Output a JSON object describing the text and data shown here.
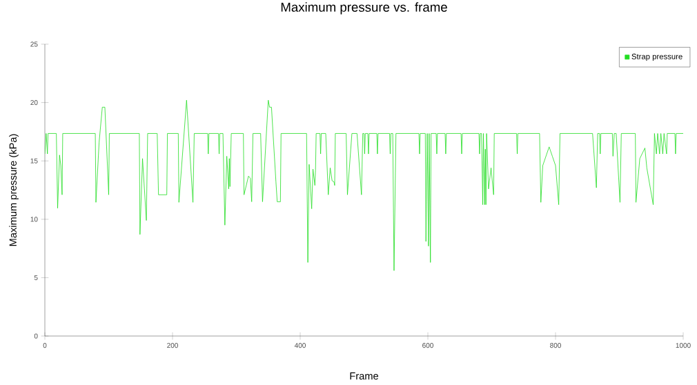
{
  "chart_data": {
    "type": "line",
    "title": "Maximum pressure vs. frame",
    "xlabel": "Frame",
    "ylabel": "Maximum pressure (kPa)",
    "xlim": [
      0,
      1000
    ],
    "ylim": [
      0,
      25
    ],
    "xticks": [
      0,
      200,
      400,
      600,
      800,
      1000
    ],
    "yticks": [
      0,
      5,
      10,
      15,
      20,
      25
    ],
    "legend": "top right",
    "x": [
      0,
      2,
      4,
      5,
      18,
      20,
      23,
      25,
      27,
      28,
      79,
      80,
      85,
      90,
      94,
      100,
      101,
      148,
      149,
      153,
      159,
      161,
      176,
      178,
      191,
      192,
      209,
      210,
      222,
      232,
      234,
      255,
      256,
      257,
      272,
      273,
      274,
      279,
      282,
      285,
      288,
      289,
      290,
      292,
      311,
      312,
      319,
      322,
      324,
      326,
      338,
      341,
      350,
      352,
      355,
      362,
      364,
      369,
      370,
      410,
      412,
      414,
      418,
      420,
      423,
      424,
      425,
      431,
      432,
      433,
      440,
      444,
      447,
      450,
      453,
      454,
      455,
      472,
      474,
      481,
      489,
      496,
      498,
      500,
      501,
      502,
      506,
      507,
      508,
      520,
      521,
      522,
      540,
      541,
      542,
      545,
      547,
      550,
      586,
      587,
      588,
      596,
      597,
      599,
      601,
      602,
      604,
      605,
      613,
      614,
      615,
      627,
      628,
      629,
      652,
      653,
      654,
      680,
      681,
      682,
      684,
      686,
      687,
      689,
      690,
      691,
      692,
      695,
      699,
      703,
      704,
      739,
      740,
      741,
      775,
      777,
      780,
      790,
      795,
      800,
      805,
      807,
      858,
      864,
      866,
      869,
      870,
      871,
      889,
      890,
      892,
      895,
      901,
      903,
      925,
      926,
      932,
      940,
      943,
      953,
      955,
      958,
      960,
      963,
      965,
      968,
      970,
      974,
      975,
      987,
      988,
      989,
      1000
    ],
    "series": [
      {
        "name": "Strap pressure",
        "color": "#22dd22",
        "values": [
          15.6,
          17.35,
          15.6,
          17.35,
          17.35,
          10.95,
          15.5,
          14.6,
          12.1,
          17.35,
          17.35,
          11.45,
          16.6,
          19.6,
          19.6,
          12.1,
          17.35,
          17.35,
          8.7,
          15.2,
          9.9,
          17.35,
          17.35,
          12.1,
          12.1,
          17.35,
          17.35,
          11.45,
          20.2,
          11.45,
          17.35,
          17.35,
          15.6,
          17.35,
          17.35,
          15.6,
          17.35,
          17.35,
          9.5,
          15.4,
          12.6,
          15.2,
          12.8,
          17.35,
          17.35,
          12.1,
          13.7,
          13.5,
          11.5,
          17.35,
          17.35,
          11.5,
          20.2,
          19.6,
          19.6,
          13.2,
          11.5,
          11.5,
          17.35,
          17.35,
          6.3,
          14.7,
          10.9,
          14.3,
          12.9,
          14.2,
          17.35,
          17.35,
          15.6,
          17.35,
          17.35,
          12.1,
          14.4,
          13.3,
          13.2,
          12.9,
          17.35,
          17.35,
          12.1,
          17.35,
          17.35,
          12.1,
          17.35,
          17.35,
          15.6,
          17.35,
          17.35,
          15.6,
          17.35,
          17.35,
          15.6,
          17.35,
          17.35,
          15.6,
          17.35,
          17.35,
          5.6,
          17.35,
          17.35,
          15.6,
          17.35,
          17.35,
          8.1,
          17.35,
          7.7,
          17.35,
          6.3,
          17.35,
          17.35,
          15.6,
          17.35,
          17.35,
          15.6,
          17.35,
          17.35,
          15.6,
          17.35,
          17.35,
          15.6,
          17.35,
          17.35,
          11.25,
          17.35,
          11.25,
          16,
          11.25,
          17.35,
          12.6,
          14.4,
          12.1,
          17.35,
          17.35,
          15.6,
          17.35,
          17.35,
          11.45,
          14.6,
          16.2,
          15.4,
          14.6,
          11.25,
          17.35,
          17.35,
          12.7,
          17.35,
          17.35,
          15.6,
          17.35,
          17.35,
          15.4,
          17.35,
          17.35,
          11.45,
          17.35,
          17.35,
          11.45,
          15.2,
          16.1,
          14.4,
          11.25,
          17.35,
          15.6,
          17.35,
          15.6,
          17.35,
          15.6,
          17.35,
          15.6,
          17.35,
          17.35,
          15.6,
          17.35,
          17.35
        ]
      }
    ]
  }
}
